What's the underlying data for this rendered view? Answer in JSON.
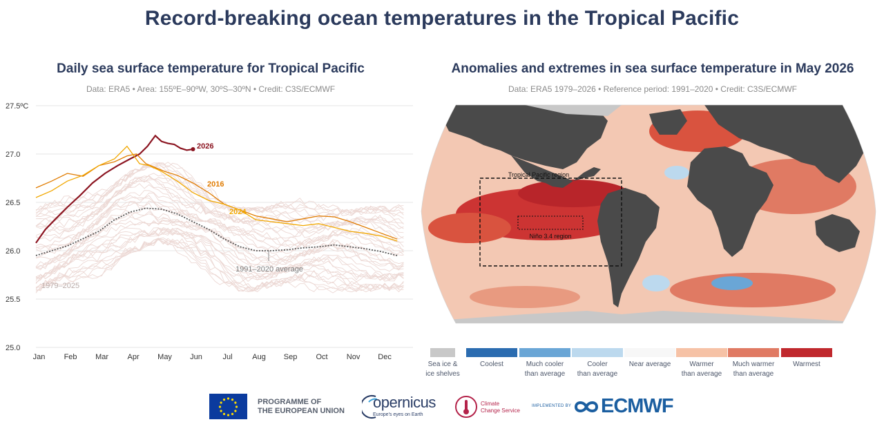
{
  "main_title": "Record-breaking ocean temperatures in the Tropical Pacific",
  "chart_data": [
    {
      "type": "line",
      "title": "Daily sea surface temperature for Tropical Pacific",
      "subtitle": "Data: ERA5 • Area: 155ºE–90ºW, 30ºS–30ºN • Credit: C3S/ECMWF",
      "ylim": [
        25.0,
        27.5
      ],
      "y_ticks": [
        "27.5ºC",
        "27.0",
        "26.5",
        "26.0",
        "25.5",
        "25.0"
      ],
      "months": [
        "Jan",
        "Feb",
        "Mar",
        "Apr",
        "May",
        "Jun",
        "Jul",
        "Aug",
        "Sep",
        "Oct",
        "Nov",
        "Dec"
      ],
      "grid": true,
      "x_unit_note": "",
      "series": [
        {
          "name": "2026",
          "color": "#8b1420",
          "x": [
            0,
            0.3,
            0.6,
            1.0,
            1.4,
            1.8,
            2.2,
            2.6,
            3.0,
            3.3,
            3.55,
            3.8,
            4.0,
            4.2,
            4.4,
            4.6,
            4.8,
            5.0
          ],
          "y": [
            26.08,
            26.22,
            26.32,
            26.45,
            26.57,
            26.7,
            26.8,
            26.88,
            26.95,
            27.0,
            27.08,
            27.19,
            27.13,
            27.11,
            27.1,
            27.06,
            27.04,
            27.05
          ]
        },
        {
          "name": "2016",
          "color": "#e07b00",
          "x": [
            0,
            0.5,
            1.0,
            1.5,
            2.0,
            2.5,
            2.9,
            3.2,
            3.5,
            3.8,
            4.1,
            4.5,
            5.0,
            5.5,
            6.0,
            6.5,
            7.0,
            7.5,
            8.0,
            8.5,
            9.0,
            9.5,
            10.0,
            10.5,
            11.0,
            11.5
          ],
          "y": [
            26.65,
            26.72,
            26.8,
            26.77,
            26.88,
            26.92,
            26.98,
            27.0,
            26.9,
            26.86,
            26.82,
            26.78,
            26.7,
            26.6,
            26.48,
            26.42,
            26.36,
            26.33,
            26.3,
            26.33,
            26.36,
            26.35,
            26.3,
            26.24,
            26.18,
            26.12
          ]
        },
        {
          "name": "2024",
          "color": "#f1a700",
          "x": [
            0,
            0.5,
            1.0,
            1.5,
            2.0,
            2.5,
            2.9,
            3.3,
            3.6,
            4.0,
            4.5,
            5.0,
            5.5,
            6.0,
            6.5,
            7.0,
            7.5,
            8.0,
            8.5,
            9.0,
            9.5,
            10.0,
            10.5,
            11.0,
            11.5
          ],
          "y": [
            26.55,
            26.62,
            26.72,
            26.78,
            26.88,
            26.95,
            27.08,
            26.9,
            26.88,
            26.82,
            26.72,
            26.6,
            26.52,
            26.48,
            26.42,
            26.32,
            26.3,
            26.28,
            26.26,
            26.28,
            26.24,
            26.2,
            26.18,
            26.15,
            26.1
          ]
        },
        {
          "name": "1991–2020 average",
          "color": "#555555",
          "x": [
            0,
            1.0,
            2.0,
            2.5,
            3.0,
            3.5,
            4.0,
            4.5,
            5.0,
            5.5,
            6.0,
            6.5,
            7.0,
            7.5,
            8.0,
            8.5,
            9.0,
            9.5,
            10.0,
            10.5,
            11.0,
            11.5
          ],
          "y": [
            25.95,
            26.05,
            26.2,
            26.32,
            26.4,
            26.44,
            26.43,
            26.38,
            26.3,
            26.22,
            26.12,
            26.04,
            26.0,
            26.0,
            26.01,
            26.03,
            26.04,
            26.06,
            26.04,
            26.02,
            25.99,
            25.95
          ]
        }
      ],
      "background_series_label": "1979–2025",
      "labels": {
        "s2026": "2026",
        "s2016": "2016",
        "s2024": "2024",
        "avg": "1991–2020 average",
        "bg": "1979–2025"
      }
    },
    {
      "type": "map",
      "title": "Anomalies and extremes in sea surface temperature in May 2026",
      "subtitle": "Data: ERA5 1979–2026  •  Reference period: 1991–2020  •  Credit: C3S/ECMWF",
      "annotations": {
        "region1": "Tropical Pacific region",
        "region2": "Niño 3.4 region"
      },
      "legend": [
        {
          "label": "Sea ice &\nice shelves",
          "color": "#c8c8c8"
        },
        {
          "label": "Coolest",
          "color": "#2b6cb0"
        },
        {
          "label": "Much cooler\nthan average",
          "color": "#6aa6d6"
        },
        {
          "label": "Cooler\nthan average",
          "color": "#bcd9ee"
        },
        {
          "label": "Near average",
          "color": "#f7f7f7"
        },
        {
          "label": "Warmer\nthan average",
          "color": "#f6c2a6"
        },
        {
          "label": "Much warmer\nthan average",
          "color": "#e07a63"
        },
        {
          "label": "Warmest",
          "color": "#c0282d"
        }
      ]
    }
  ],
  "footer": {
    "eu_line1": "PROGRAMME OF",
    "eu_line2": "THE EUROPEAN UNION",
    "copernicus": "opernicus",
    "copernicus_sub": "Europe's eyes on Earth",
    "c3s_line1": "Climate",
    "c3s_line2": "Change Service",
    "ecmwf_small": "IMPLEMENTED BY",
    "ecmwf": "ECMWF"
  }
}
